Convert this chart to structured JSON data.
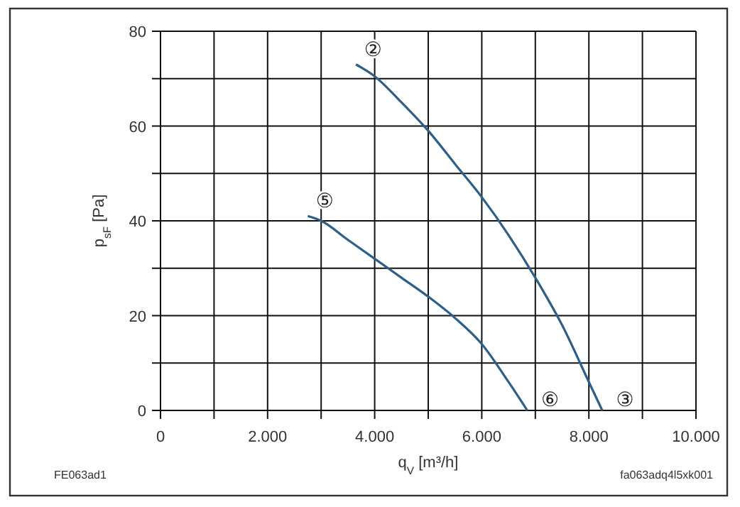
{
  "chart_data": {
    "type": "line",
    "xlabel": "q$_{V}$ [m³/h]",
    "ylabel": "p$_{sF}$ [Pa]",
    "xlim": [
      0,
      10000
    ],
    "ylim": [
      0,
      80
    ],
    "xticks": [
      0,
      {
        "value": 1000,
        "label": null
      },
      {
        "value": 2000,
        "label": "2.000"
      },
      {
        "value": 3000,
        "label": null
      },
      {
        "value": 4000,
        "label": "4.000"
      },
      {
        "value": 5000,
        "label": null
      },
      {
        "value": 6000,
        "label": "6.000"
      },
      {
        "value": 7000,
        "label": null
      },
      {
        "value": 8000,
        "label": "8.000"
      },
      {
        "value": 9000,
        "label": null
      },
      {
        "value": 10000,
        "label": "10.000"
      }
    ],
    "yticks": [
      0,
      {
        "value": 10,
        "label": null
      },
      20,
      {
        "value": 30,
        "label": null
      },
      40,
      {
        "value": 50,
        "label": null
      },
      60,
      {
        "value": 70,
        "label": null
      },
      80
    ],
    "grid": true,
    "marker": "none",
    "line_style": "solid",
    "series": [
      {
        "color": "#2e5f88",
        "x": [
          3650,
          4000,
          4500,
          5000,
          5500,
          6000,
          6500,
          7000,
          7500,
          8000,
          8250
        ],
        "values": [
          73,
          70.5,
          65,
          59,
          52,
          45,
          37,
          28,
          18,
          6,
          0
        ]
      },
      {
        "color": "#2e5f88",
        "x": [
          2750,
          3000,
          3500,
          4000,
          4500,
          5000,
          5500,
          6000,
          6500,
          6850
        ],
        "values": [
          41,
          40,
          36,
          32,
          28,
          24,
          19.5,
          14,
          6,
          0
        ]
      }
    ],
    "annotations": [
      "②",
      "③",
      "⑤",
      "⑥",
      "FE063ad1",
      "fa063adq4l5xk001"
    ]
  }
}
